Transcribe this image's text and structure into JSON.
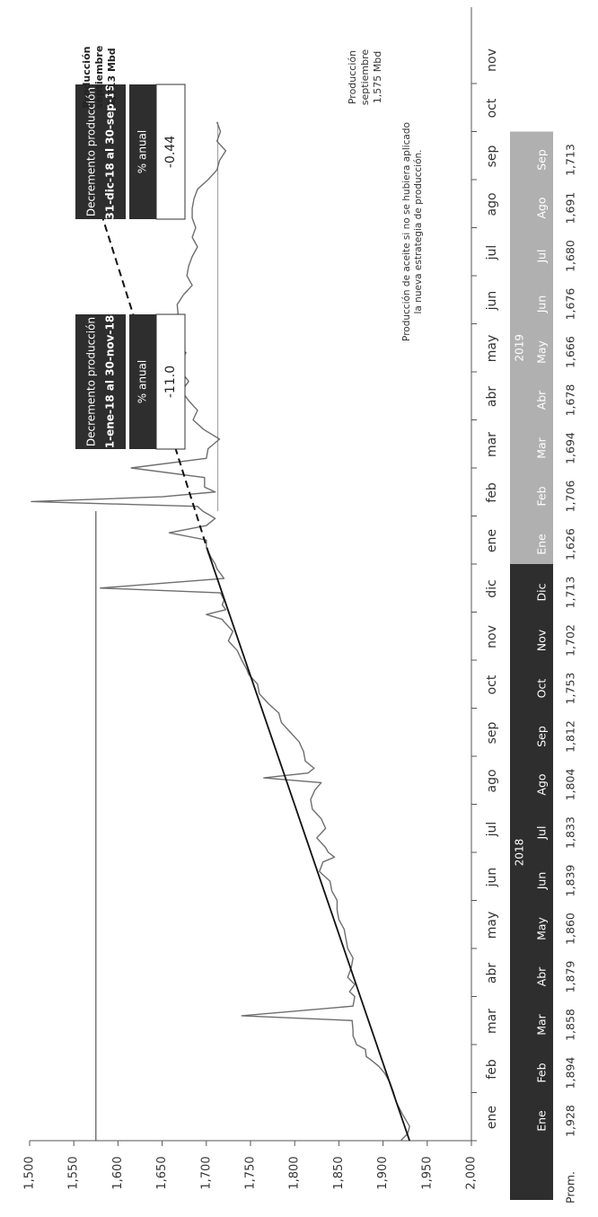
{
  "chart_data": {
    "type": "line",
    "ylim": [
      1500,
      2000
    ],
    "y_ticks": [
      "2,000",
      "1,950",
      "1,900",
      "1,850",
      "1,800",
      "1,750",
      "1,700",
      "1,650",
      "1,600",
      "1,550",
      "1,500"
    ],
    "x_tick_labels": [
      "ene",
      "feb",
      "mar",
      "abr",
      "may",
      "jun",
      "jul",
      "ago",
      "sep",
      "oct",
      "nov",
      "dic",
      "ene",
      "feb",
      "mar",
      "abr",
      "may",
      "jun",
      "jul",
      "ago",
      "sep",
      "oct",
      "nov"
    ],
    "daily_production": {
      "name": "Producción diaria",
      "x_month_index": [
        0.0,
        0.15,
        0.3,
        0.55,
        0.8,
        1.0,
        1.2,
        1.4,
        1.55,
        1.7,
        1.75,
        1.9,
        2.0,
        2.1,
        2.18,
        2.3,
        2.5,
        2.6,
        2.8,
        3.0,
        3.1,
        3.25,
        3.4,
        3.6,
        3.8,
        4.0,
        4.2,
        4.4,
        4.6,
        4.8,
        5.0,
        5.2,
        5.4,
        5.6,
        5.8,
        5.9,
        6.0,
        6.1,
        6.3,
        6.5,
        6.7,
        6.9,
        7.1,
        7.3,
        7.45,
        7.55,
        7.65,
        7.75,
        7.9,
        8.1,
        8.3,
        8.5,
        8.7,
        8.9,
        9.1,
        9.3,
        9.5,
        9.7,
        9.8,
        10.0,
        10.2,
        10.4,
        10.6,
        10.8,
        10.85,
        10.95,
        11.05,
        11.15,
        11.25,
        11.4,
        11.5,
        11.7,
        11.9,
        12.0,
        12.15,
        12.35,
        12.5,
        12.65,
        12.8,
        12.95,
        13.1,
        13.2,
        13.3,
        13.4,
        13.5,
        13.6,
        13.8,
        14.0,
        14.2,
        14.4,
        14.6,
        14.8,
        15.0,
        15.2,
        15.4,
        15.6,
        15.8,
        16.0,
        16.2,
        16.4,
        16.6,
        16.8,
        17.0,
        17.2,
        17.4,
        17.6,
        17.8,
        18.0,
        18.2,
        18.4,
        18.6,
        18.8,
        19.0,
        19.2,
        19.4,
        19.6,
        19.8,
        20.0,
        20.2,
        20.4,
        20.6,
        20.8,
        21.0,
        21.2
      ],
      "values": [
        1920,
        1928,
        1930,
        1922,
        1915,
        1912,
        1908,
        1902,
        1895,
        1885,
        1881,
        1880,
        1870,
        1868,
        1866,
        1866,
        1865,
        1740,
        1866,
        1868,
        1862,
        1868,
        1860,
        1864,
        1866,
        1860,
        1858,
        1856,
        1850,
        1848,
        1848,
        1842,
        1840,
        1828,
        1832,
        1845,
        1838,
        1835,
        1825,
        1835,
        1830,
        1820,
        1818,
        1823,
        1830,
        1765,
        1815,
        1822,
        1812,
        1810,
        1805,
        1795,
        1785,
        1782,
        1770,
        1760,
        1758,
        1748,
        1746,
        1740,
        1735,
        1725,
        1730,
        1720,
        1718,
        1700,
        1722,
        1718,
        1720,
        1716,
        1580,
        1720,
        1712,
        1710,
        1705,
        1700,
        1700,
        1658,
        1700,
        1710,
        1696,
        1690,
        1502,
        1650,
        1710,
        1698,
        1698,
        1615,
        1700,
        1702,
        1715,
        1697,
        1685,
        1690,
        1680,
        1672,
        1680,
        1672,
        1670,
        1677,
        1665,
        1672,
        1672,
        1668,
        1667,
        1674,
        1684,
        1678,
        1680,
        1684,
        1690,
        1684,
        1688,
        1684,
        1684,
        1686,
        1690,
        1702,
        1712,
        1715,
        1722,
        1712,
        1716,
        1712
      ]
    },
    "trend_line": {
      "x_month_index": [
        0,
        12.2
      ],
      "values": [
        1930,
        1703
      ]
    },
    "projection_line": {
      "x_month_index": [
        12.2,
        19.65
      ],
      "values": [
        1703,
        1575
      ]
    },
    "reference_line_1575": {
      "x_month_index": [
        0,
        13.1
      ],
      "values": [
        1575,
        1575
      ]
    },
    "reference_line_1713": {
      "x_month_index": [
        13.1,
        21.2
      ],
      "values": [
        1713,
        1713
      ]
    },
    "year_labels": [
      {
        "label": "2018",
        "month_from": 0,
        "month_to": 11
      },
      {
        "label": "2019",
        "month_from": 12,
        "month_to": 20
      }
    ],
    "table_months": [
      "Ene",
      "Feb",
      "Mar",
      "Abr",
      "May",
      "Jun",
      "Jul",
      "Ago",
      "Sep",
      "Oct",
      "Nov",
      "Dic",
      "Ene",
      "Feb",
      "Mar",
      "Abr",
      "May",
      "Jun",
      "Jul",
      "Ago",
      "Sep"
    ],
    "table_avg_label": "Prom.",
    "table_avg_values": [
      "1,928",
      "1,894",
      "1,858",
      "1,879",
      "1,860",
      "1,839",
      "1,833",
      "1,804",
      "1,812",
      "1,753",
      "1,702",
      "1,713",
      "1,626",
      "1,706",
      "1,694",
      "1,678",
      "1,666",
      "1,676",
      "1,680",
      "1,691",
      "1,713"
    ],
    "colors": {
      "year_2018_band": "#2e2e2e",
      "year_2019_band": "#b0b0b0",
      "daily_line": "#6e6e6e",
      "trend": "#111111"
    },
    "box_2018": {
      "line1": "Decremento producción",
      "line2": "1-ene-18 al 30-nov-18",
      "header": "% anual",
      "value": "-11.0"
    },
    "box_2019": {
      "line1": "Decremento producción",
      "line2": "31-dic-18 al 30-sep-19",
      "header": "% anual",
      "value": "-0.44"
    },
    "annotation_1713": [
      "Producción",
      "septiembre",
      "1,713 Mbd"
    ],
    "annotation_1575": [
      "Producción",
      "septiembre",
      "1,575 Mbd"
    ],
    "annotation_projection": [
      "Producción de aceite si no se hubiera aplicado",
      "la nueva estrategia de producción."
    ]
  }
}
